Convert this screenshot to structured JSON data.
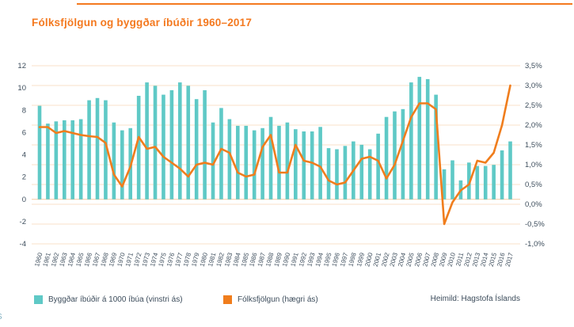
{
  "page": {
    "title": "Fólksfjölgun og byggðar íbúðir 1960–2017",
    "source": "Heimild: Hagstofa Íslands",
    "edge_artifact": "S"
  },
  "colors": {
    "accent_orange": "#f4791f",
    "bar_teal": "#5fc9c6",
    "line_orange": "#f07d1c",
    "grid": "#fae0c8",
    "baseline": "#f5c9a2",
    "axis_text": "#3d4d5c",
    "title_text": "#f4791f"
  },
  "legend": [
    {
      "label": "Byggðar íbúðir á 1000 íbúa (vinstri ás)",
      "color": "#5fc9c6"
    },
    {
      "label": "Fólksfjölgun (hægri ás)",
      "color": "#f07d1c"
    }
  ],
  "chart_data": {
    "type": "bar",
    "subtype": "combo-bar-line-dual-axis",
    "title": "Fólksfjölgun og byggðar íbúðir 1960–2017",
    "grid": true,
    "legend_position": "bottom",
    "categories": [
      "1960",
      "1961",
      "1962",
      "1963",
      "1964",
      "1965",
      "1966",
      "1967",
      "1968",
      "1969",
      "1970",
      "1971",
      "1972",
      "1973",
      "1974",
      "1975",
      "1976",
      "1977",
      "1978",
      "1979",
      "1980",
      "1981",
      "1982",
      "1983",
      "1984",
      "1985",
      "1986",
      "1987",
      "1988",
      "1989",
      "1990",
      "1991",
      "1992",
      "1993",
      "1994",
      "1995",
      "1996",
      "1997",
      "1998",
      "1999",
      "2000",
      "2001",
      "2002",
      "2003",
      "2004",
      "2005",
      "2006",
      "2007",
      "2008",
      "2009",
      "2010",
      "2011",
      "2012",
      "2013",
      "2014",
      "2015",
      "2016",
      "2017"
    ],
    "series": [
      {
        "name": "Byggðar íbúðir á 1000 íbúa (vinstri ás)",
        "type": "bar",
        "axis": "left",
        "color": "#5fc9c6",
        "values": [
          8.4,
          6.8,
          7.0,
          7.1,
          7.1,
          7.2,
          8.9,
          9.1,
          8.9,
          6.9,
          6.2,
          6.4,
          9.3,
          10.5,
          10.2,
          9.4,
          9.8,
          10.5,
          10.2,
          9.0,
          9.8,
          6.9,
          8.2,
          7.2,
          6.6,
          6.6,
          6.2,
          6.4,
          7.4,
          6.6,
          6.9,
          6.3,
          6.1,
          6.1,
          6.5,
          4.6,
          4.5,
          4.8,
          5.2,
          4.9,
          4.5,
          5.9,
          7.4,
          7.9,
          8.1,
          10.5,
          11.0,
          10.8,
          9.4,
          2.7,
          3.5,
          1.7,
          3.3,
          3.0,
          3.0,
          3.1,
          4.4,
          5.2
        ]
      },
      {
        "name": "Fólksfjölgun (hægri ás)",
        "type": "line",
        "axis": "right",
        "color": "#f07d1c",
        "values": [
          1.95,
          1.95,
          1.8,
          1.85,
          1.8,
          1.75,
          1.72,
          1.7,
          1.55,
          0.75,
          0.45,
          0.95,
          1.7,
          1.4,
          1.45,
          1.2,
          1.05,
          0.9,
          0.7,
          1.0,
          1.05,
          1.0,
          1.4,
          1.3,
          0.8,
          0.7,
          0.75,
          1.45,
          1.75,
          0.8,
          0.8,
          1.5,
          1.1,
          1.05,
          0.95,
          0.6,
          0.5,
          0.55,
          0.85,
          1.15,
          1.2,
          1.1,
          0.65,
          1.0,
          1.6,
          2.2,
          2.55,
          2.55,
          2.4,
          -0.5,
          0.05,
          0.35,
          0.5,
          1.1,
          1.05,
          1.3,
          2.0,
          3.0
        ]
      }
    ],
    "left_axis": {
      "min": -4,
      "max": 12,
      "tick_values": [
        12,
        10,
        8,
        6,
        4,
        2,
        0,
        -2,
        -4
      ],
      "tick_labels": [
        "12",
        "10",
        "8",
        "6",
        "4",
        "2",
        "0",
        "-2",
        "-4"
      ]
    },
    "right_axis": {
      "min": -1.0,
      "max": 3.5,
      "tick_values": [
        3.5,
        3.0,
        2.5,
        2.0,
        1.5,
        1.0,
        0.5,
        0.0,
        -0.5,
        -1.0
      ],
      "tick_labels": [
        "3,5%",
        "3,0%",
        "2,5%",
        "2,0%",
        "1,5%",
        "1,0%",
        "0,5%",
        "0,0%",
        "-0,5%",
        "-1,0%"
      ]
    }
  }
}
